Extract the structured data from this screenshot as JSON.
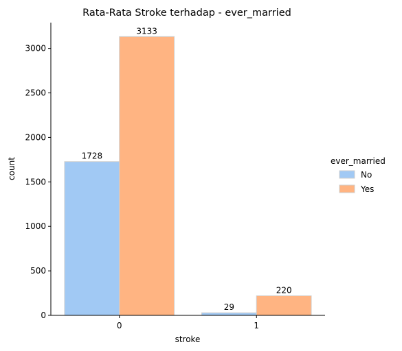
{
  "chart_data": {
    "type": "bar",
    "title": "Rata-Rata Stroke terhadap - ever_married",
    "xlabel": "stroke",
    "ylabel": "count",
    "categories": [
      "0",
      "1"
    ],
    "ylim": [
      0,
      3290
    ],
    "yticks": [
      0,
      500,
      1000,
      1500,
      2000,
      2500,
      3000
    ],
    "grid": false,
    "legend": {
      "title": "ever_married",
      "placement": "right"
    },
    "series": [
      {
        "name": "No",
        "values": [
          1728,
          29
        ],
        "labels": [
          "1728",
          "29"
        ],
        "color": "#a1c9f4"
      },
      {
        "name": "Yes",
        "values": [
          3133,
          220
        ],
        "labels": [
          "3133",
          "220"
        ],
        "color": "#ffb482"
      }
    ]
  }
}
